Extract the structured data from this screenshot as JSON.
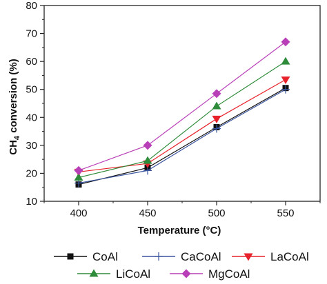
{
  "chart_data": {
    "type": "line",
    "xlabel": "Temperature (°C)",
    "ylabel_parts": {
      "prefix": "CH",
      "sub": "4",
      "suffix": " conversion (%)"
    },
    "x": [
      400,
      450,
      500,
      550
    ],
    "xticks": [
      "400",
      "450",
      "500",
      "550"
    ],
    "xlim": [
      375,
      575
    ],
    "ylim": [
      10,
      80
    ],
    "yticks": [
      "10",
      "20",
      "30",
      "40",
      "50",
      "60",
      "70",
      "80"
    ],
    "grid": false,
    "legend_position": "bottom",
    "series": [
      {
        "name": "CoAl",
        "values": [
          16.0,
          22.0,
          36.5,
          50.5
        ],
        "color": "#111111",
        "marker": "square"
      },
      {
        "name": "CaCoAl",
        "values": [
          16.5,
          21.0,
          36.0,
          50.0
        ],
        "color": "#3b55a0",
        "marker": "plus"
      },
      {
        "name": "LaCoAl",
        "values": [
          20.5,
          23.5,
          39.5,
          53.5
        ],
        "color": "#e8222b",
        "marker": "triangle-down"
      },
      {
        "name": "LiCoAl",
        "values": [
          18.5,
          24.5,
          44.0,
          60.0
        ],
        "color": "#2e8b3a",
        "marker": "triangle-up"
      },
      {
        "name": "MgCoAl",
        "values": [
          21.0,
          30.0,
          48.5,
          67.0
        ],
        "color": "#b93fb8",
        "marker": "diamond"
      }
    ]
  }
}
